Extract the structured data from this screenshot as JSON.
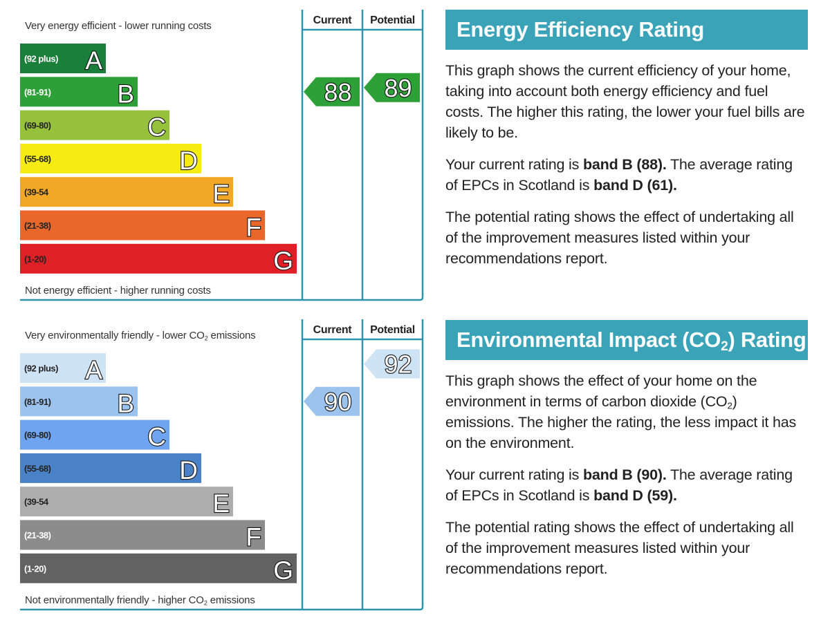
{
  "chart_data": [
    {
      "type": "bar",
      "title": "Energy Efficiency Rating",
      "top_caption": "Very energy efficient - lower running costs",
      "bottom_caption": "Not energy efficient - higher running costs",
      "columns": [
        "Current",
        "Potential"
      ],
      "bands": [
        {
          "letter": "A",
          "range": "(92 plus)",
          "color": "#1a7f3a",
          "text_color": "#ffffff"
        },
        {
          "letter": "B",
          "range": "(81-91)",
          "color": "#2da138",
          "text_color": "#ffffff"
        },
        {
          "letter": "C",
          "range": "(69-80)",
          "color": "#95c13d",
          "text_color": "#222222"
        },
        {
          "letter": "D",
          "range": "(55-68)",
          "color": "#f6ec14",
          "text_color": "#222222"
        },
        {
          "letter": "E",
          "range": "(39-54",
          "color": "#f2a826",
          "text_color": "#222222"
        },
        {
          "letter": "F",
          "range": "(21-38)",
          "color": "#e9672a",
          "text_color": "#222222"
        },
        {
          "letter": "G",
          "range": "(1-20)",
          "color": "#e02027",
          "text_color": "#222222"
        }
      ],
      "current": {
        "value": 88,
        "band": "B",
        "color": "#2da138"
      },
      "potential": {
        "value": 89,
        "band": "B",
        "color": "#2da138"
      }
    },
    {
      "type": "bar",
      "title": "Environmental Impact (CO2) Rating",
      "top_caption": "Very environmentally friendly - lower CO2 emissions",
      "bottom_caption": "Not environmentally friendly - higher CO2 emissions",
      "columns": [
        "Current",
        "Potential"
      ],
      "bands": [
        {
          "letter": "A",
          "range": "(92 plus)",
          "color": "#cfe3f6",
          "text_color": "#222222"
        },
        {
          "letter": "B",
          "range": "(81-91)",
          "color": "#9cc3ee",
          "text_color": "#222222"
        },
        {
          "letter": "C",
          "range": "(69-80)",
          "color": "#6ea4f0",
          "text_color": "#222222"
        },
        {
          "letter": "D",
          "range": "(55-68)",
          "color": "#4a82c8",
          "text_color": "#222222"
        },
        {
          "letter": "E",
          "range": "(39-54",
          "color": "#adadad",
          "text_color": "#222222"
        },
        {
          "letter": "F",
          "range": "(21-38)",
          "color": "#8c8c8c",
          "text_color": "#ffffff"
        },
        {
          "letter": "G",
          "range": "(1-20)",
          "color": "#626262",
          "text_color": "#ffffff"
        }
      ],
      "current": {
        "value": 90,
        "band": "B",
        "color": "#9cc3ee"
      },
      "potential": {
        "value": 92,
        "band": "A",
        "color": "#cfe3f6"
      }
    }
  ],
  "frame_color": "#2f93ad",
  "energy_panel": {
    "title": "Energy Efficiency Rating",
    "para1": "This graph shows the current efficiency of your home, taking into account both energy efficiency and fuel costs. The higher this rating, the lower your fuel bills are likely to be.",
    "para2_prefix": "Your current rating is ",
    "para2_bold1": "band B (88).",
    "para2_mid": " The average rating of EPCs in Scotland is ",
    "para2_bold2": "band D (61).",
    "para3": "The potential rating shows the effect of undertaking all of the improvement measures listed within your recommendations report."
  },
  "co2_panel": {
    "title_pre": "Environmental Impact (CO",
    "title_sub": "2",
    "title_post": ") Rating",
    "para1_pre": "This graph shows the effect of your home on the environment in terms of carbon dioxide (CO",
    "para1_sub": "2",
    "para1_post": ") emissions. The higher the rating, the less impact it has on the environment.",
    "para2_prefix": "Your current rating is ",
    "para2_bold1": "band B (90).",
    "para2_mid": " The average rating of EPCs in Scotland is ",
    "para2_bold2": "band D (59).",
    "para3": "The potential rating shows the effect of undertaking all of the improvement measures listed within your recommendations report."
  },
  "co2_captions": {
    "top_pre": "Very environmentally friendly - lower CO",
    "top_sub": "2",
    "top_post": " emissions",
    "bottom_pre": "Not environmentally friendly - higher CO",
    "bottom_sub": "2",
    "bottom_post": " emissions"
  }
}
